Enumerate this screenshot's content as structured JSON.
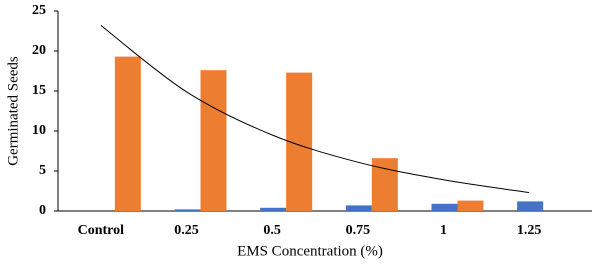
{
  "chart_data": {
    "type": "bar",
    "x_label": "EMS Concentration (%)",
    "y_label": "Germinated Seeds",
    "categories": [
      "Control",
      "0.25",
      "0.5",
      "0.75",
      "1",
      "1.25"
    ],
    "series": [
      {
        "color": "#4472c4",
        "values": [
          0,
          0.2,
          0.4,
          0.7,
          0.9,
          1.2
        ]
      },
      {
        "color": "#ed7d31",
        "values": [
          19.3,
          17.6,
          17.3,
          6.6,
          1.3,
          0
        ]
      }
    ],
    "trendline": {
      "color": "#000000",
      "values": [
        23.2,
        14.9,
        9.5,
        6.1,
        3.9,
        2.3
      ]
    },
    "ylim": [
      0,
      25
    ],
    "yticks": [
      0,
      5,
      10,
      15,
      20,
      25
    ],
    "grid": false
  }
}
